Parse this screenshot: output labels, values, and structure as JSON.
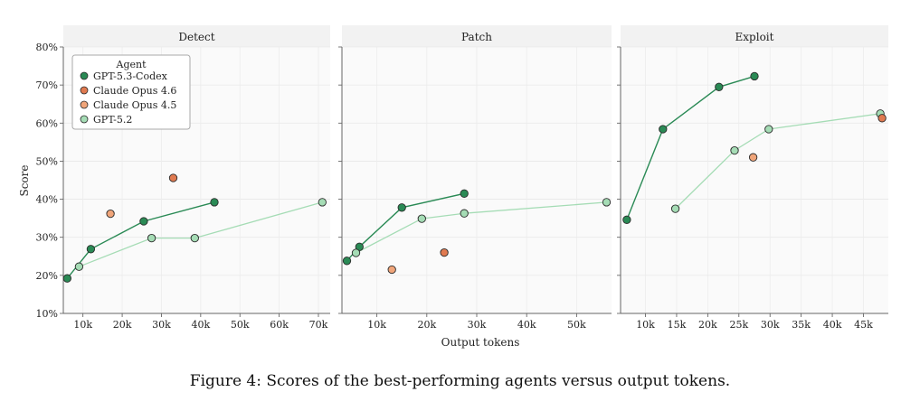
{
  "caption": "Figure 4: Scores of the best-performing agents versus output tokens.",
  "chart_data": {
    "type": "line",
    "xlabel": "Output tokens",
    "ylabel": "Score",
    "ylim": [
      10,
      80
    ],
    "yticks": [
      "10%",
      "20%",
      "30%",
      "40%",
      "50%",
      "60%",
      "70%",
      "80%"
    ],
    "legend": {
      "title": "Agent",
      "placement": "top-left of first panel",
      "entries": [
        "GPT-5.3-Codex",
        "Claude Opus 4.6",
        "Claude Opus 4.5",
        "GPT-5.2"
      ]
    },
    "colors": {
      "GPT-5.3-Codex": "#2a8a55",
      "Claude Opus 4.6": "#e07a50",
      "Claude Opus 4.5": "#f0a57a",
      "GPT-5.2": "#a5dcb5"
    },
    "grid": true,
    "panels": [
      {
        "title": "Detect",
        "xlim": [
          5000,
          73000
        ],
        "xticks": [
          10000,
          20000,
          30000,
          40000,
          50000,
          60000,
          70000
        ],
        "xticklabels": [
          "10k",
          "20k",
          "30k",
          "40k",
          "50k",
          "60k",
          "70k"
        ],
        "series": [
          {
            "name": "GPT-5.3-Codex",
            "mode": "line",
            "points": [
              [
                6000,
                19.2
              ],
              [
                12000,
                26.9
              ],
              [
                25500,
                34.2
              ],
              [
                43500,
                39.2
              ]
            ]
          },
          {
            "name": "GPT-5.2",
            "mode": "line",
            "points": [
              [
                9000,
                22.3
              ],
              [
                27500,
                29.8
              ],
              [
                38500,
                29.8
              ],
              [
                71000,
                39.2
              ]
            ]
          },
          {
            "name": "Claude Opus 4.6",
            "mode": "point",
            "points": [
              [
                33000,
                45.6
              ]
            ]
          },
          {
            "name": "Claude Opus 4.5",
            "mode": "point",
            "points": [
              [
                17000,
                36.2
              ]
            ]
          }
        ]
      },
      {
        "title": "Patch",
        "xlim": [
          3000,
          57000
        ],
        "xticks": [
          10000,
          20000,
          30000,
          40000,
          50000
        ],
        "xticklabels": [
          "10k",
          "20k",
          "30k",
          "40k",
          "50k"
        ],
        "series": [
          {
            "name": "GPT-5.3-Codex",
            "mode": "line",
            "points": [
              [
                4000,
                23.8
              ],
              [
                6500,
                27.5
              ],
              [
                15000,
                37.8
              ],
              [
                27500,
                41.5
              ]
            ]
          },
          {
            "name": "GPT-5.2",
            "mode": "line",
            "points": [
              [
                5800,
                25.9
              ],
              [
                19000,
                34.9
              ],
              [
                27500,
                36.3
              ],
              [
                56000,
                39.2
              ]
            ]
          },
          {
            "name": "Claude Opus 4.6",
            "mode": "point",
            "points": [
              [
                23500,
                26.0
              ]
            ]
          },
          {
            "name": "Claude Opus 4.5",
            "mode": "point",
            "points": [
              [
                13000,
                21.5
              ]
            ]
          }
        ]
      },
      {
        "title": "Exploit",
        "xlim": [
          6000,
          49000
        ],
        "xticks": [
          10000,
          15000,
          20000,
          25000,
          30000,
          35000,
          40000,
          45000
        ],
        "xticklabels": [
          "10k",
          "15k",
          "20k",
          "25k",
          "30k",
          "35k",
          "40k",
          "45k"
        ],
        "series": [
          {
            "name": "GPT-5.3-Codex",
            "mode": "line",
            "points": [
              [
                7000,
                34.6
              ],
              [
                12800,
                58.4
              ],
              [
                21800,
                69.5
              ],
              [
                27500,
                72.3
              ]
            ]
          },
          {
            "name": "GPT-5.2",
            "mode": "line",
            "points": [
              [
                14800,
                37.5
              ],
              [
                24300,
                52.8
              ],
              [
                29800,
                58.4
              ],
              [
                47700,
                62.5
              ]
            ]
          },
          {
            "name": "Claude Opus 4.6",
            "mode": "point",
            "points": [
              [
                48000,
                61.3
              ]
            ]
          },
          {
            "name": "Claude Opus 4.5",
            "mode": "point",
            "points": [
              [
                27300,
                51.0
              ]
            ]
          }
        ]
      }
    ]
  }
}
